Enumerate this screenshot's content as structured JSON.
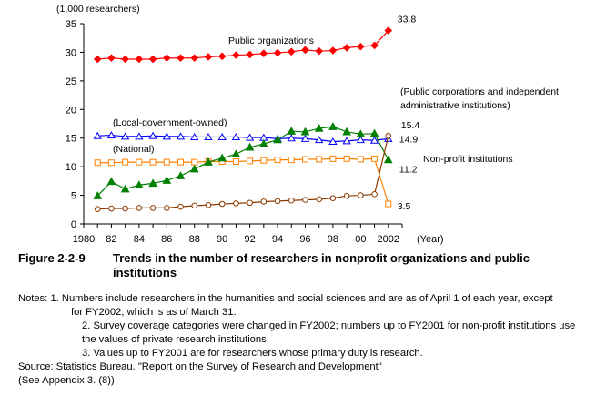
{
  "chart_data": {
    "type": "line",
    "title": "",
    "unit_label": "(1,000 researchers)",
    "xlabel": "(Year)",
    "ylim": [
      0,
      35
    ],
    "yticks": [
      0,
      5,
      10,
      15,
      20,
      25,
      30,
      35
    ],
    "x": [
      1981,
      1982,
      1983,
      1984,
      1985,
      1986,
      1987,
      1988,
      1989,
      1990,
      1991,
      1992,
      1993,
      1994,
      1995,
      1996,
      1997,
      1998,
      1999,
      2000,
      2001,
      2002
    ],
    "xticks": [
      {
        "value": 1980,
        "label": "1980"
      },
      {
        "value": 1982,
        "label": "82"
      },
      {
        "value": 1984,
        "label": "84"
      },
      {
        "value": 1986,
        "label": "86"
      },
      {
        "value": 1988,
        "label": "88"
      },
      {
        "value": 1990,
        "label": "90"
      },
      {
        "value": 1992,
        "label": "92"
      },
      {
        "value": 1994,
        "label": "94"
      },
      {
        "value": 1996,
        "label": "96"
      },
      {
        "value": 1998,
        "label": "98"
      },
      {
        "value": 2000,
        "label": "00"
      },
      {
        "value": 2002,
        "label": "2002"
      }
    ],
    "grid": false,
    "series": [
      {
        "name": "Public organizations",
        "color": "#ff0000",
        "marker": "diamond-filled",
        "values": [
          28.8,
          29.0,
          28.8,
          28.8,
          28.8,
          29.0,
          29.0,
          29.0,
          29.2,
          29.3,
          29.5,
          29.6,
          29.8,
          29.9,
          30.1,
          30.4,
          30.2,
          30.3,
          30.8,
          31.0,
          31.2,
          33.8
        ],
        "end_label": "33.8"
      },
      {
        "name": "(Local-government-owned)",
        "color": "#0000ff",
        "marker": "triangle-open",
        "values": [
          15.4,
          15.5,
          15.3,
          15.3,
          15.4,
          15.3,
          15.3,
          15.2,
          15.2,
          15.2,
          15.2,
          15.1,
          15.1,
          14.9,
          15.0,
          14.9,
          14.7,
          14.4,
          14.5,
          14.7,
          14.6,
          14.9
        ],
        "end_label": "14.9"
      },
      {
        "name": "(National)",
        "color": "#ff8000",
        "marker": "square-open",
        "values": [
          10.7,
          10.7,
          10.8,
          10.8,
          10.8,
          10.8,
          10.8,
          10.8,
          10.9,
          10.9,
          10.9,
          11.0,
          11.1,
          11.2,
          11.2,
          11.3,
          11.3,
          11.4,
          11.4,
          11.3,
          11.4,
          3.5
        ],
        "end_label": "3.5"
      },
      {
        "name": "Non-profit institutions",
        "color": "#008000",
        "marker": "triangle-filled",
        "values": [
          4.9,
          7.4,
          6.1,
          6.8,
          7.1,
          7.6,
          8.4,
          9.6,
          10.8,
          11.5,
          12.2,
          13.4,
          14.0,
          14.7,
          16.2,
          16.1,
          16.7,
          17.0,
          16.1,
          15.7,
          15.8,
          11.2
        ],
        "end_label": "11.2"
      },
      {
        "name": "(Public corporations and independent administrative institutions)",
        "color": "#8b3a00",
        "marker": "circle-open",
        "values": [
          2.6,
          2.7,
          2.7,
          2.8,
          2.8,
          2.8,
          3.0,
          3.2,
          3.3,
          3.5,
          3.6,
          3.7,
          3.9,
          4.0,
          4.1,
          4.2,
          4.3,
          4.5,
          4.9,
          5.0,
          5.2,
          15.4
        ],
        "end_label": "15.4"
      }
    ],
    "annotations": {
      "public_label": "Public organizations",
      "local_label": "(Local-government-owned)",
      "national_label": "(National)",
      "nonprofit_label": "Non-profit institutions",
      "corp_label_line1": "(Public corporations and independent",
      "corp_label_line2": "administrative institutions)"
    }
  },
  "caption": {
    "number": "Figure 2-2-9",
    "text": "Trends in the number of researchers in nonprofit organizations and public institutions"
  },
  "notes": {
    "line1": "Notes: 1. Numbers include researchers in the humanities and social sciences and are as of April 1 of each year, except",
    "line1b": "for FY2002, which is as of March 31.",
    "line2": "2. Survey coverage categories were changed in FY2002; numbers up to FY2001 for non-profit institutions use",
    "line2b": "the values of private research institutions.",
    "line3": "3. Values up to FY2001 are for researchers whose primary duty is research.",
    "source": "Source: Statistics Bureau. \"Report on the Survey of Research and Development\"",
    "appendix": "(See Appendix 3. (8))"
  }
}
